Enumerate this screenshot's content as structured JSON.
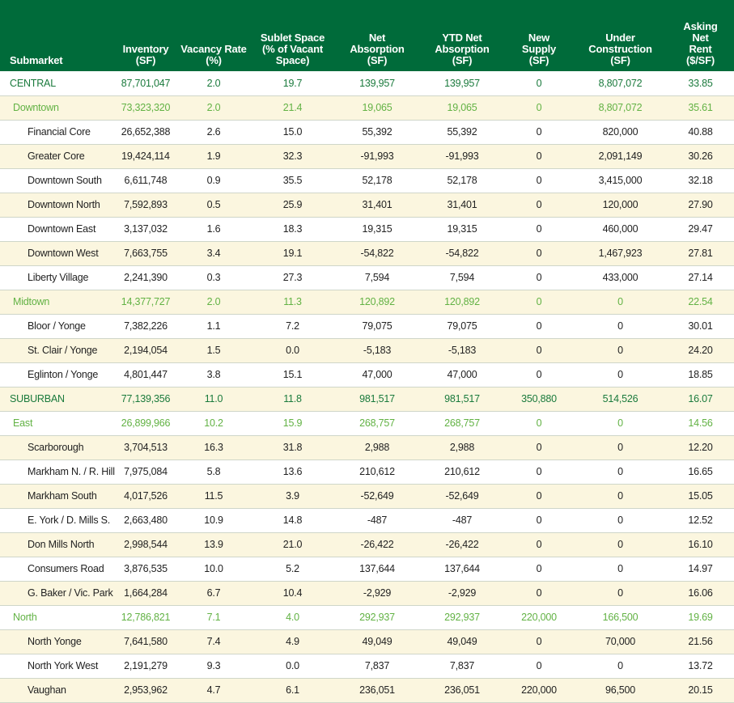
{
  "headers": [
    "Submarket",
    "Inventory (SF)",
    "Vacancy Rate (%)",
    "Sublet Space (% of Vacant Space)",
    "Net Absorption (SF)",
    "YTD Net Absorption (SF)",
    "New Supply (SF)",
    "Under Construction (SF)",
    "Asking Net Rent ($/SF)"
  ],
  "header_lines": [
    [
      "Submarket"
    ],
    [
      "Inventory",
      "(SF)"
    ],
    [
      "Vacancy Rate",
      "(%)"
    ],
    [
      "Sublet Space",
      "(% of Vacant",
      "Space)"
    ],
    [
      "Net",
      "Absorption",
      "(SF)"
    ],
    [
      "YTD Net",
      "Absorption",
      "(SF)"
    ],
    [
      "New",
      "Supply",
      "(SF)"
    ],
    [
      "Under",
      "Construction",
      "(SF)"
    ],
    [
      "Asking",
      "Net",
      "Rent",
      "($/SF)"
    ]
  ],
  "rows": [
    {
      "level": "region",
      "stripe": false,
      "cells": [
        "CENTRAL",
        "87,701,047",
        "2.0",
        "19.7",
        "139,957",
        "139,957",
        "0",
        "8,807,072",
        "33.85"
      ]
    },
    {
      "level": "sub",
      "stripe": true,
      "cells": [
        "Downtown",
        "73,323,320",
        "2.0",
        "21.4",
        "19,065",
        "19,065",
        "0",
        "8,807,072",
        "35.61"
      ]
    },
    {
      "level": "leaf",
      "stripe": false,
      "cells": [
        "Financial Core",
        "26,652,388",
        "2.6",
        "15.0",
        "55,392",
        "55,392",
        "0",
        "820,000",
        "40.88"
      ]
    },
    {
      "level": "leaf",
      "stripe": true,
      "cells": [
        "Greater Core",
        "19,424,114",
        "1.9",
        "32.3",
        "-91,993",
        "-91,993",
        "0",
        "2,091,149",
        "30.26"
      ]
    },
    {
      "level": "leaf",
      "stripe": false,
      "cells": [
        "Downtown South",
        "6,611,748",
        "0.9",
        "35.5",
        "52,178",
        "52,178",
        "0",
        "3,415,000",
        "32.18"
      ]
    },
    {
      "level": "leaf",
      "stripe": true,
      "cells": [
        "Downtown North",
        "7,592,893",
        "0.5",
        "25.9",
        "31,401",
        "31,401",
        "0",
        "120,000",
        "27.90"
      ]
    },
    {
      "level": "leaf",
      "stripe": false,
      "cells": [
        "Downtown East",
        "3,137,032",
        "1.6",
        "18.3",
        "19,315",
        "19,315",
        "0",
        "460,000",
        "29.47"
      ]
    },
    {
      "level": "leaf",
      "stripe": true,
      "cells": [
        "Downtown West",
        "7,663,755",
        "3.4",
        "19.1",
        "-54,822",
        "-54,822",
        "0",
        "1,467,923",
        "27.81"
      ]
    },
    {
      "level": "leaf",
      "stripe": false,
      "cells": [
        "Liberty Village",
        "2,241,390",
        "0.3",
        "27.3",
        "7,594",
        "7,594",
        "0",
        "433,000",
        "27.14"
      ]
    },
    {
      "level": "sub",
      "stripe": true,
      "cells": [
        "Midtown",
        "14,377,727",
        "2.0",
        "11.3",
        "120,892",
        "120,892",
        "0",
        "0",
        "22.54"
      ]
    },
    {
      "level": "leaf",
      "stripe": false,
      "cells": [
        "Bloor / Yonge",
        "7,382,226",
        "1.1",
        "7.2",
        "79,075",
        "79,075",
        "0",
        "0",
        "30.01"
      ]
    },
    {
      "level": "leaf",
      "stripe": true,
      "cells": [
        "St. Clair / Yonge",
        "2,194,054",
        "1.5",
        "0.0",
        "-5,183",
        "-5,183",
        "0",
        "0",
        "24.20"
      ]
    },
    {
      "level": "leaf",
      "stripe": false,
      "cells": [
        "Eglinton / Yonge",
        "4,801,447",
        "3.8",
        "15.1",
        "47,000",
        "47,000",
        "0",
        "0",
        "18.85"
      ]
    },
    {
      "level": "region",
      "stripe": true,
      "cells": [
        "SUBURBAN",
        "77,139,356",
        "11.0",
        "11.8",
        "981,517",
        "981,517",
        "350,880",
        "514,526",
        "16.07"
      ]
    },
    {
      "level": "sub",
      "stripe": false,
      "cells": [
        "East",
        "26,899,966",
        "10.2",
        "15.9",
        "268,757",
        "268,757",
        "0",
        "0",
        "14.56"
      ]
    },
    {
      "level": "leaf",
      "stripe": true,
      "cells": [
        "Scarborough",
        "3,704,513",
        "16.3",
        "31.8",
        "2,988",
        "2,988",
        "0",
        "0",
        "12.20"
      ]
    },
    {
      "level": "leaf",
      "stripe": false,
      "cells": [
        "Markham N. / R. Hill",
        "7,975,084",
        "5.8",
        "13.6",
        "210,612",
        "210,612",
        "0",
        "0",
        "16.65"
      ]
    },
    {
      "level": "leaf",
      "stripe": true,
      "cells": [
        "Markham South",
        "4,017,526",
        "11.5",
        "3.9",
        "-52,649",
        "-52,649",
        "0",
        "0",
        "15.05"
      ]
    },
    {
      "level": "leaf",
      "stripe": false,
      "cells": [
        "E. York / D. Mills S.",
        "2,663,480",
        "10.9",
        "14.8",
        "-487",
        "-487",
        "0",
        "0",
        "12.52"
      ]
    },
    {
      "level": "leaf",
      "stripe": true,
      "cells": [
        "Don Mills North",
        "2,998,544",
        "13.9",
        "21.0",
        "-26,422",
        "-26,422",
        "0",
        "0",
        "16.10"
      ]
    },
    {
      "level": "leaf",
      "stripe": false,
      "cells": [
        "Consumers Road",
        "3,876,535",
        "10.0",
        "5.2",
        "137,644",
        "137,644",
        "0",
        "0",
        "14.97"
      ]
    },
    {
      "level": "leaf",
      "stripe": true,
      "cells": [
        "G. Baker / Vic. Park",
        "1,664,284",
        "6.7",
        "10.4",
        "-2,929",
        "-2,929",
        "0",
        "0",
        "16.06"
      ]
    },
    {
      "level": "sub",
      "stripe": false,
      "cells": [
        "North",
        "12,786,821",
        "7.1",
        "4.0",
        "292,937",
        "292,937",
        "220,000",
        "166,500",
        "19.69"
      ]
    },
    {
      "level": "leaf",
      "stripe": true,
      "cells": [
        "North Yonge",
        "7,641,580",
        "7.4",
        "4.9",
        "49,049",
        "49,049",
        "0",
        "70,000",
        "21.56"
      ]
    },
    {
      "level": "leaf",
      "stripe": false,
      "cells": [
        "North York West",
        "2,191,279",
        "9.3",
        "0.0",
        "7,837",
        "7,837",
        "0",
        "0",
        "13.72"
      ]
    },
    {
      "level": "leaf",
      "stripe": true,
      "cells": [
        "Vaughan",
        "2,953,962",
        "4.7",
        "6.1",
        "236,051",
        "236,051",
        "220,000",
        "96,500",
        "20.15"
      ]
    }
  ],
  "colors": {
    "header_bg": "#006b3a",
    "region_text": "#1a7a3c",
    "subregion_text": "#62b244",
    "stripe_bg": "#fbf6df"
  }
}
